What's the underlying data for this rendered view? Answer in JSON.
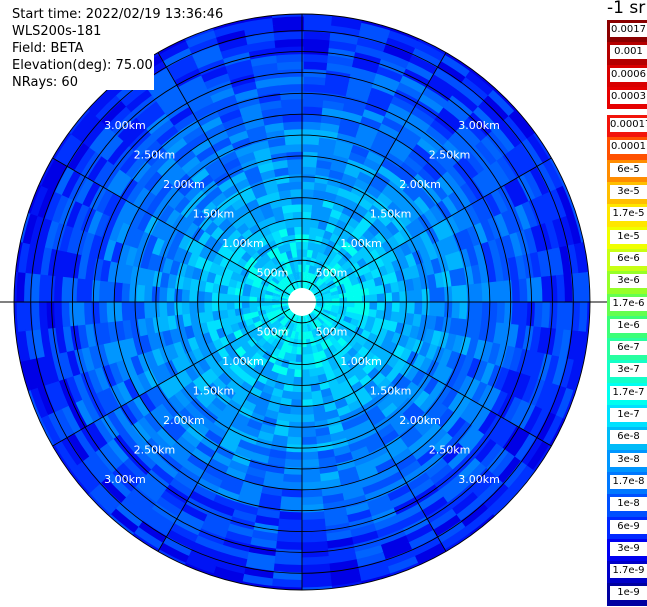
{
  "info": {
    "start_time": "Start time: 2022/02/19 13:36:46",
    "instrument": "WLS200s-181",
    "field": "Field: BETA",
    "elevation": "Elevation(deg): 75.00",
    "nrays": "NRays: 60"
  },
  "colorbar": {
    "unit_label": "-1 sr",
    "upper_levels": [
      {
        "label": "0.0017",
        "color": "#8b0000"
      },
      {
        "label": "0.001",
        "color": "#b40000"
      },
      {
        "label": "0.0006",
        "color": "#d80000"
      },
      {
        "label": "0.0003",
        "color": "#e60000"
      }
    ],
    "levels": [
      {
        "label": "0.00017",
        "color": "#f2140a"
      },
      {
        "label": "0.0001",
        "color": "#ff5000"
      },
      {
        "label": "6e-5",
        "color": "#ff8c00"
      },
      {
        "label": "3e-5",
        "color": "#ffbe00"
      },
      {
        "label": "1.7e-5",
        "color": "#ffe600"
      },
      {
        "label": "1e-5",
        "color": "#f0ff00"
      },
      {
        "label": "6e-6",
        "color": "#c8ff14"
      },
      {
        "label": "3e-6",
        "color": "#96ff28"
      },
      {
        "label": "1.7e-6",
        "color": "#64ff50"
      },
      {
        "label": "1e-6",
        "color": "#3cff78"
      },
      {
        "label": "6e-7",
        "color": "#28ffa0"
      },
      {
        "label": "3e-7",
        "color": "#14ffc8"
      },
      {
        "label": "1.7e-7",
        "color": "#00fff0"
      },
      {
        "label": "1e-7",
        "color": "#00e1ff"
      },
      {
        "label": "6e-8",
        "color": "#00bbf8"
      },
      {
        "label": "3e-8",
        "color": "#0096ff"
      },
      {
        "label": "1.7e-8",
        "color": "#0078ff"
      },
      {
        "label": "1e-8",
        "color": "#0050ff"
      },
      {
        "label": "6e-9",
        "color": "#0028ff"
      },
      {
        "label": "3e-9",
        "color": "#0000f0"
      },
      {
        "label": "1.7e-9",
        "color": "#0000c8"
      },
      {
        "label": "1e-9",
        "color": "#0000a0"
      }
    ]
  },
  "chart_data": {
    "type": "heatmap",
    "projection": "polar PPI",
    "field": "BETA",
    "elevation_deg": 75.0,
    "n_rays": 60,
    "range_rings": [
      {
        "range_m": 500,
        "label": "500m"
      },
      {
        "range_m": 1000,
        "label": "1.00km"
      },
      {
        "range_m": 1500,
        "label": "1.50km"
      },
      {
        "range_m": 2000,
        "label": "2.00km"
      },
      {
        "range_m": 2500,
        "label": "2.50km"
      },
      {
        "range_m": 3000,
        "label": "3.00km"
      }
    ],
    "max_range_m": 3450,
    "spoke_angles_deg": [
      0,
      30,
      60,
      90,
      120,
      150,
      180,
      210,
      240,
      270,
      300,
      330
    ],
    "approx_beta_by_range": [
      {
        "range_m": 300,
        "beta": "1.7e-7"
      },
      {
        "range_m": 600,
        "beta": "1e-7"
      },
      {
        "range_m": 1000,
        "beta": "6e-8"
      },
      {
        "range_m": 1500,
        "beta": "1.7e-8"
      },
      {
        "range_m": 2500,
        "beta": "6e-9"
      },
      {
        "range_m": 3400,
        "beta": "3e-9"
      }
    ],
    "ylabel": "-1 sr"
  }
}
